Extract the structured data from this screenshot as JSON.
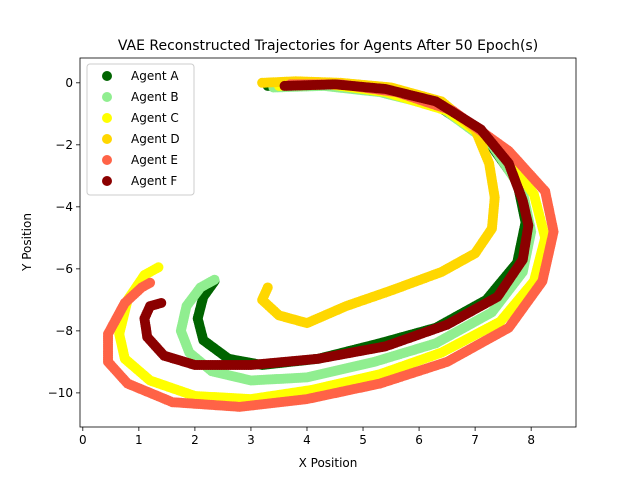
{
  "chart_data": {
    "type": "scatter",
    "title": "VAE Reconstructed Trajectories for Agents After 50 Epoch(s)",
    "xlabel": "X Position",
    "ylabel": "Y Position",
    "xlim": [
      -0.05,
      8.8
    ],
    "ylim": [
      -11.1,
      0.8
    ],
    "xticks": [
      0,
      1,
      2,
      3,
      4,
      5,
      6,
      7,
      8
    ],
    "yticks": [
      0,
      -2,
      -4,
      -6,
      -8,
      -10
    ],
    "xtick_labels": [
      "0",
      "1",
      "2",
      "3",
      "4",
      "5",
      "6",
      "7",
      "8"
    ],
    "ytick_labels": [
      "0",
      "−2",
      "−4",
      "−6",
      "−8",
      "−10"
    ],
    "grid": false,
    "legend_position": "top-left",
    "series": [
      {
        "name": "Agent A",
        "color": "#006400",
        "points": [
          [
            3.3,
            -0.1
          ],
          [
            4.2,
            -0.05
          ],
          [
            5.2,
            -0.2
          ],
          [
            6.3,
            -0.7
          ],
          [
            7.2,
            -1.8
          ],
          [
            7.75,
            -3.2
          ],
          [
            7.9,
            -4.5
          ],
          [
            7.75,
            -5.8
          ],
          [
            7.2,
            -7.0
          ],
          [
            6.3,
            -7.9
          ],
          [
            5.3,
            -8.4
          ],
          [
            4.2,
            -8.9
          ],
          [
            3.2,
            -9.1
          ],
          [
            2.6,
            -8.9
          ],
          [
            2.15,
            -8.3
          ],
          [
            2.05,
            -7.6
          ],
          [
            2.15,
            -6.9
          ],
          [
            2.35,
            -6.4
          ]
        ]
      },
      {
        "name": "Agent B",
        "color": "#90EE90",
        "points": [
          [
            3.4,
            -0.15
          ],
          [
            4.3,
            -0.1
          ],
          [
            5.3,
            -0.3
          ],
          [
            6.4,
            -0.8
          ],
          [
            7.3,
            -2.0
          ],
          [
            7.85,
            -3.5
          ],
          [
            8.0,
            -4.8
          ],
          [
            7.85,
            -6.1
          ],
          [
            7.3,
            -7.4
          ],
          [
            6.3,
            -8.4
          ],
          [
            5.2,
            -9.0
          ],
          [
            4.0,
            -9.5
          ],
          [
            3.0,
            -9.6
          ],
          [
            2.3,
            -9.3
          ],
          [
            1.9,
            -8.7
          ],
          [
            1.75,
            -8.0
          ],
          [
            1.85,
            -7.2
          ],
          [
            2.1,
            -6.6
          ],
          [
            2.35,
            -6.35
          ]
        ]
      },
      {
        "name": "Agent C",
        "color": "#FFFF00",
        "points": [
          [
            3.5,
            -0.1
          ],
          [
            4.4,
            -0.05
          ],
          [
            5.4,
            -0.3
          ],
          [
            6.5,
            -0.9
          ],
          [
            7.5,
            -2.2
          ],
          [
            8.05,
            -3.6
          ],
          [
            8.25,
            -5.0
          ],
          [
            8.05,
            -6.4
          ],
          [
            7.45,
            -7.7
          ],
          [
            6.4,
            -8.7
          ],
          [
            5.3,
            -9.4
          ],
          [
            4.1,
            -9.9
          ],
          [
            3.0,
            -10.2
          ],
          [
            2.0,
            -10.1
          ],
          [
            1.2,
            -9.6
          ],
          [
            0.75,
            -8.9
          ],
          [
            0.65,
            -8.1
          ],
          [
            0.8,
            -7.0
          ],
          [
            1.1,
            -6.2
          ],
          [
            1.35,
            -5.95
          ]
        ]
      },
      {
        "name": "Agent D",
        "color": "#FFD700",
        "points": [
          [
            3.2,
            0.0
          ],
          [
            3.8,
            0.05
          ],
          [
            4.6,
            0.0
          ],
          [
            5.5,
            -0.15
          ],
          [
            6.4,
            -0.6
          ],
          [
            7.0,
            -1.5
          ],
          [
            7.25,
            -2.6
          ],
          [
            7.35,
            -3.7
          ],
          [
            7.3,
            -4.7
          ],
          [
            7.0,
            -5.5
          ],
          [
            6.4,
            -6.1
          ],
          [
            5.5,
            -6.7
          ],
          [
            4.7,
            -7.2
          ],
          [
            4.0,
            -7.75
          ],
          [
            3.5,
            -7.5
          ],
          [
            3.2,
            -7.0
          ],
          [
            3.3,
            -6.6
          ]
        ]
      },
      {
        "name": "Agent E",
        "color": "#FF6347",
        "points": [
          [
            3.7,
            -0.05
          ],
          [
            4.6,
            -0.05
          ],
          [
            5.6,
            -0.3
          ],
          [
            6.6,
            -0.9
          ],
          [
            7.6,
            -2.2
          ],
          [
            8.25,
            -3.5
          ],
          [
            8.4,
            -4.8
          ],
          [
            8.2,
            -6.4
          ],
          [
            7.6,
            -7.9
          ],
          [
            6.5,
            -9.0
          ],
          [
            5.3,
            -9.7
          ],
          [
            4.0,
            -10.2
          ],
          [
            2.8,
            -10.45
          ],
          [
            1.6,
            -10.3
          ],
          [
            0.8,
            -9.7
          ],
          [
            0.45,
            -9.0
          ],
          [
            0.45,
            -8.1
          ],
          [
            0.75,
            -7.1
          ],
          [
            1.05,
            -6.6
          ],
          [
            1.2,
            -6.45
          ]
        ]
      },
      {
        "name": "Agent F",
        "color": "#8B0000",
        "points": [
          [
            3.6,
            -0.1
          ],
          [
            4.5,
            -0.05
          ],
          [
            5.4,
            -0.2
          ],
          [
            6.3,
            -0.6
          ],
          [
            7.1,
            -1.5
          ],
          [
            7.6,
            -2.6
          ],
          [
            7.85,
            -3.8
          ],
          [
            7.95,
            -4.6
          ],
          [
            7.85,
            -5.7
          ],
          [
            7.4,
            -6.9
          ],
          [
            6.5,
            -7.8
          ],
          [
            5.4,
            -8.5
          ],
          [
            4.2,
            -8.9
          ],
          [
            3.0,
            -9.1
          ],
          [
            2.0,
            -9.1
          ],
          [
            1.45,
            -8.8
          ],
          [
            1.15,
            -8.2
          ],
          [
            1.1,
            -7.6
          ],
          [
            1.2,
            -7.2
          ],
          [
            1.4,
            -7.1
          ]
        ]
      }
    ]
  }
}
